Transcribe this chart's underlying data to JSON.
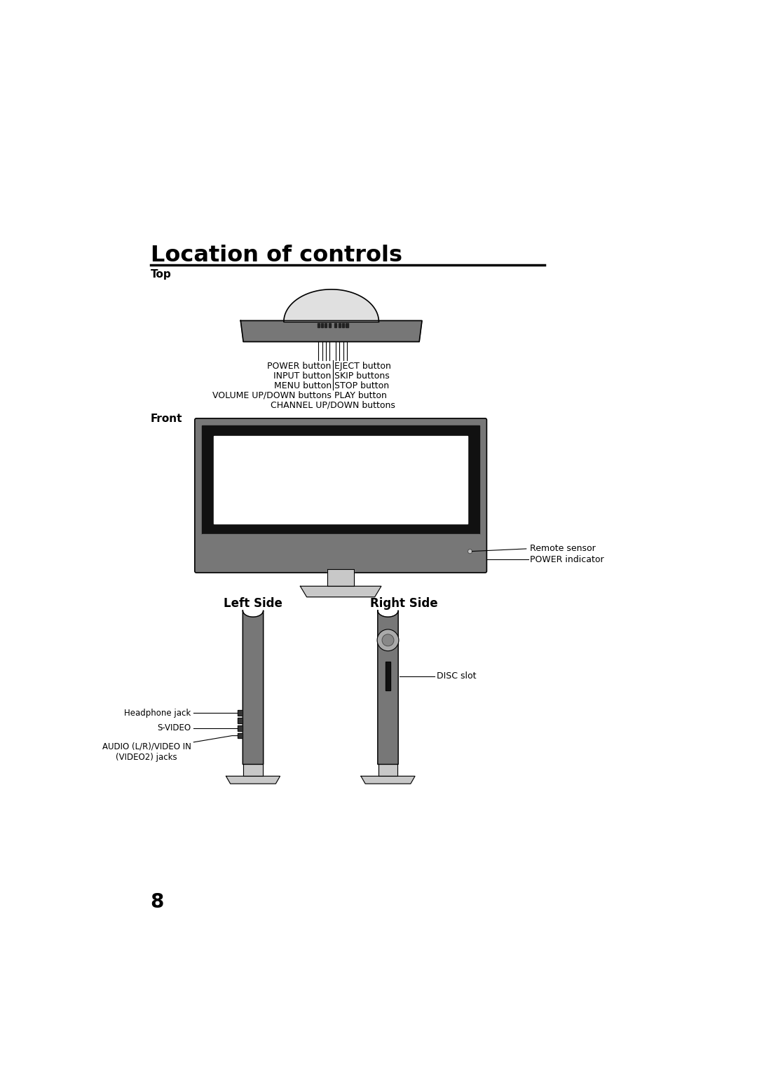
{
  "title": "Location of controls",
  "bg_color": "#ffffff",
  "text_color": "#000000",
  "section_top": "Top",
  "section_front": "Front",
  "section_left": "Left Side",
  "section_right": "Right Side",
  "page_number": "8",
  "top_labels_left": [
    "POWER button",
    "INPUT button",
    "MENU button",
    "VOLUME UP/DOWN buttons",
    "CHANNEL UP/DOWN buttons"
  ],
  "top_labels_right": [
    "EJECT button",
    "SKIP buttons",
    "STOP button",
    "PLAY button"
  ],
  "front_labels": [
    "Remote sensor",
    "POWER indicator"
  ],
  "left_labels": [
    "Headphone jack",
    "S-VIDEO",
    "AUDIO (L/R)/VIDEO IN\n(VIDEO2) jacks"
  ],
  "right_labels": [
    "DISC slot"
  ],
  "gray_dark": "#4a4a4a",
  "gray_mid": "#888888",
  "gray_light": "#aaaaaa",
  "gray_lighter": "#c8c8c8",
  "gray_lightest": "#e0e0e0",
  "gray_body": "#777777",
  "gray_bezel": "#1a1a1a",
  "white": "#ffffff"
}
